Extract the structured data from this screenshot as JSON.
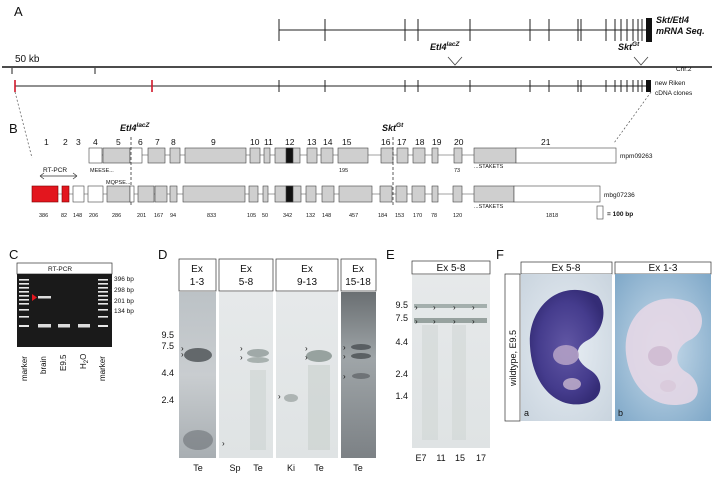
{
  "panels": {
    "A": {
      "letter": "A",
      "mrna_label_line1": "Skt/Etl4",
      "mrna_label_line2": "mRNA Seq.",
      "scale": "50 kb",
      "etl4": "Etl4",
      "etl4_sup": "lacZ",
      "skt": "Skt",
      "skt_sup": "Gt",
      "chromosome": "Chr.2",
      "clones_line1": "new Riken",
      "clones_line2": "cDNA clones"
    },
    "B": {
      "letter": "B",
      "etl4": "Etl4",
      "etl4_sup": "lacZ",
      "skt": "Skt",
      "skt_sup": "Gt",
      "exon_numbers": [
        "1",
        "2",
        "3",
        "4",
        "5",
        "6",
        "7",
        "8",
        "9",
        "10",
        "11",
        "12",
        "13",
        "14",
        "15",
        "16",
        "17",
        "18",
        "19",
        "20",
        "21"
      ],
      "rtpcr": "RT-PCR",
      "clone1": "mpm09263",
      "clone2": "mbg07236",
      "meese": "MEESE...",
      "mqpse": "MQPSE...",
      "stakets": "...STAKETS",
      "n195": "195",
      "n73": "73",
      "sizes": [
        "386",
        "82",
        "148",
        "206",
        "286",
        "201",
        "167",
        "94",
        "833",
        "105",
        "50",
        "342",
        "132",
        "148",
        "457",
        "184",
        "153",
        "170",
        "78",
        "120",
        "1818"
      ],
      "scale_label": "= 100 bp"
    },
    "C": {
      "letter": "C",
      "title": "RT-PCR",
      "bands": [
        "396 bp",
        "298 bp",
        "201 bp",
        "134 bp"
      ],
      "lanes": [
        "marker",
        "brain",
        "E9.5",
        "H2O",
        "marker"
      ]
    },
    "D": {
      "letter": "D",
      "headers": [
        [
          "Ex",
          "1-3"
        ],
        [
          "Ex",
          "5-8"
        ],
        [
          "Ex",
          "9-13"
        ],
        [
          "Ex",
          "15-18"
        ]
      ],
      "markers": [
        "9.5",
        "7.5",
        "4.4",
        "2.4"
      ],
      "lanes": [
        "Te",
        "Sp",
        "Te",
        "Ki",
        "Te",
        "Te"
      ]
    },
    "E": {
      "letter": "E",
      "header": "Ex 5-8",
      "markers": [
        "9.5",
        "7.5",
        "4.4",
        "2.4",
        "1.4"
      ],
      "lanes": [
        "E7",
        "11",
        "15",
        "17"
      ]
    },
    "F": {
      "letter": "F",
      "headers": [
        "Ex 5-8",
        "Ex 1-3"
      ],
      "side": "wildtype, E9.5",
      "sub": [
        "a",
        "b"
      ]
    }
  }
}
